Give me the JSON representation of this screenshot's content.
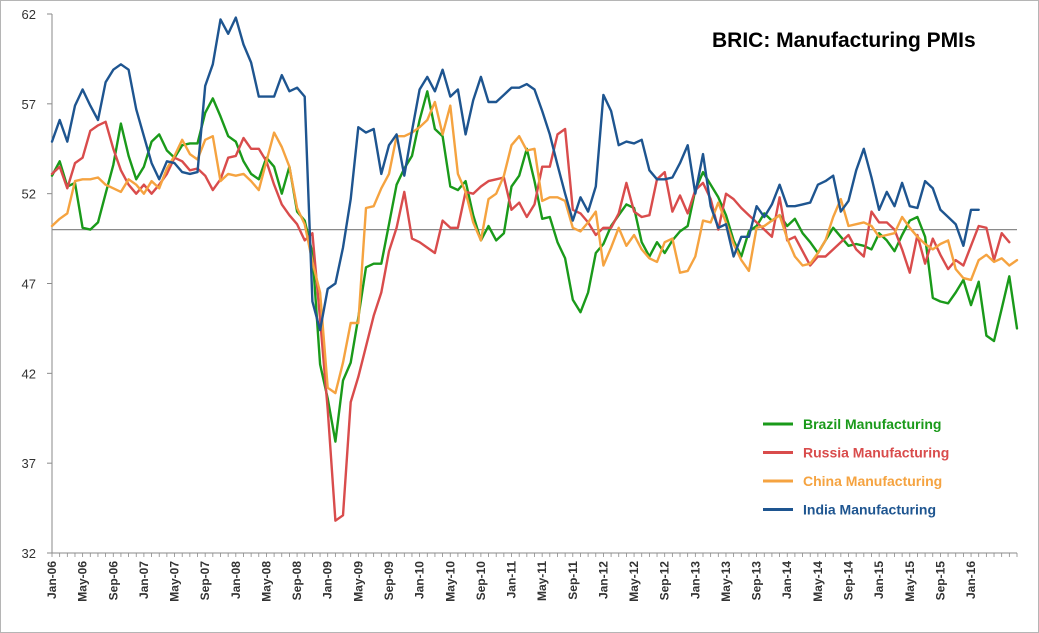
{
  "chart_data": {
    "type": "line",
    "title": "BRIC: Manufacturing PMIs",
    "xlabel": "",
    "ylabel": "",
    "ylim": [
      32,
      62
    ],
    "yticks": [
      32,
      37,
      42,
      47,
      52,
      57,
      62
    ],
    "reference_line": 50,
    "legend_position": "bottom-right",
    "grid": false,
    "x_tick_labels": [
      "Jan-06",
      "May-06",
      "Sep-06",
      "Jan-07",
      "May-07",
      "Sep-07",
      "Jan-08",
      "May-08",
      "Sep-08",
      "Jan-09",
      "May-09",
      "Sep-09",
      "Jan-10",
      "May-10",
      "Sep-10",
      "Jan-11",
      "May-11",
      "Sep-11",
      "Jan-12",
      "May-12",
      "Sep-12",
      "Jan-13",
      "May-13",
      "Sep-13",
      "Jan-14",
      "May-14",
      "Sep-14",
      "Jan-15",
      "May-15",
      "Sep-15",
      "Jan-16"
    ],
    "x_tick_start_index": 0,
    "x_tick_step_months": 4,
    "x_start": "Jan-06",
    "x_end": "Mar-16",
    "series": [
      {
        "name": "Brazil Manufacturing",
        "color": "#1a9a1a",
        "values": [
          53,
          53.8,
          52.4,
          52.6,
          50.1,
          50,
          50.4,
          52,
          53.6,
          55.9,
          54.1,
          52.8,
          53.5,
          54.9,
          55.3,
          54.4,
          54,
          54.7,
          54.8,
          54.8,
          56.5,
          57.3,
          56.3,
          55.2,
          54.9,
          53.8,
          53.1,
          52.8,
          54,
          53.5,
          52,
          53.5,
          51,
          50.5,
          48.7,
          42.5,
          40.6,
          38.2,
          41.6,
          42.6,
          45.1,
          47.9,
          48.1,
          48.1,
          50.3,
          52.5,
          53.4,
          54.1,
          56.1,
          57.7,
          55.6,
          55.2,
          52.4,
          52.2,
          52.7,
          50.8,
          49.4,
          50.2,
          49.4,
          49.8,
          52.4,
          53,
          54.5,
          52.7,
          50.6,
          50.7,
          49.3,
          48.4,
          46.1,
          45.4,
          46.5,
          48.7,
          49.2,
          50.2,
          50.8,
          51.4,
          51.2,
          49.3,
          48.5,
          49.3,
          48.7,
          49.4,
          49.9,
          50.2,
          52.2,
          53.2,
          52.5,
          51.8,
          50.8,
          49.4,
          48.5,
          49.9,
          50.2,
          50.9,
          50.5,
          50.8,
          50.2,
          50.6,
          49.8,
          49.3,
          48.7,
          49.4,
          50.1,
          49.6,
          49.1,
          49.2,
          49.1,
          48.9,
          49.8,
          49.4,
          48.8,
          49.7,
          50.5,
          50.7,
          49.6,
          46.2,
          46,
          45.9,
          46.5,
          47.2,
          45.8,
          47.1,
          44.1,
          43.8,
          45.6,
          47.4,
          44.5
        ]
      },
      {
        "name": "Russia Manufacturing",
        "color": "#d94c4c",
        "values": [
          53.1,
          53.5,
          52.3,
          53.7,
          54,
          55.5,
          55.8,
          56,
          54.5,
          53.3,
          52.5,
          52,
          52.5,
          52,
          52.5,
          53.1,
          54,
          53.8,
          53.3,
          53.4,
          53,
          52.2,
          52.8,
          54,
          54.1,
          55.1,
          54.5,
          54.5,
          53.8,
          52.5,
          51.4,
          50.8,
          50.3,
          49.4,
          49.8,
          45,
          40,
          33.8,
          34.1,
          40.4,
          41.8,
          43.5,
          45.2,
          46.5,
          48.8,
          50.1,
          52.1,
          49.5,
          49.3,
          49,
          48.7,
          50.5,
          50.1,
          50.1,
          52.1,
          52,
          52.4,
          52.7,
          52.8,
          52.9,
          51.1,
          51.5,
          50.7,
          51.4,
          53.5,
          53.5,
          55.3,
          55.6,
          51.1,
          50.9,
          50.4,
          49.7,
          50.1,
          50.1,
          50.9,
          52.6,
          51,
          50.7,
          50.8,
          52.8,
          53.2,
          51,
          51.9,
          50.9,
          52.2,
          52.6,
          51.7,
          50,
          52,
          51.7,
          51.2,
          50.8,
          50.4,
          50,
          49.6,
          51.8,
          49.4,
          49.6,
          48.8,
          48,
          48.5,
          48.5,
          48.9,
          49.3,
          49.7,
          48.9,
          48.5,
          51,
          50.4,
          50.4,
          50,
          48.9,
          47.6,
          49.7,
          48.1,
          49.5,
          48.6,
          47.8,
          48.3,
          48,
          49.1,
          50.2,
          50.1,
          48.3,
          49.8,
          49.3
        ]
      },
      {
        "name": "China Manufacturing",
        "color": "#f5a340",
        "values": [
          50.2,
          50.6,
          50.9,
          52.7,
          52.8,
          52.8,
          52.9,
          52.5,
          52.3,
          52.1,
          52.8,
          52.5,
          52,
          52.7,
          52.3,
          53.4,
          54.1,
          55,
          54.2,
          53.9,
          55,
          55.2,
          52.7,
          53.1,
          53,
          53.1,
          52.7,
          52.2,
          53.8,
          55.4,
          54.6,
          53.5,
          51.2,
          50.3,
          48.2,
          46.5,
          41.2,
          40.9,
          42.6,
          44.8,
          44.8,
          51.2,
          51.3,
          52.3,
          53.1,
          55.2,
          55.2,
          55.4,
          55.7,
          56.1,
          57.1,
          55.3,
          56.9,
          53.1,
          52.1,
          50.4,
          49.4,
          51.7,
          52,
          53,
          54.7,
          55.2,
          54.4,
          54.5,
          51.6,
          51.8,
          51.8,
          51.6,
          50.1,
          49.9,
          50.4,
          51,
          48,
          49,
          50.1,
          49.1,
          49.7,
          48.9,
          48.4,
          48.2,
          49.3,
          49.5,
          47.6,
          47.7,
          48.5,
          50.5,
          50.4,
          51.5,
          50.4,
          49.2,
          48.3,
          47.7,
          50.1,
          50.2,
          50.5,
          50.8,
          49.5,
          48.5,
          48,
          48.1,
          48.7,
          49.4,
          50.7,
          51.7,
          50.2,
          50.3,
          50.4,
          50.2,
          49.6,
          49.7,
          49.8,
          50.7,
          50.1,
          49.6,
          49.2,
          48.9,
          49.2,
          49.4,
          47.8,
          47.3,
          47.2,
          48.3,
          48.6,
          48.2,
          48.4,
          48,
          48.3
        ]
      },
      {
        "name": "India Manufacturing",
        "color": "#1e5590",
        "values": [
          54.9,
          56.1,
          54.9,
          56.9,
          57.8,
          56.9,
          56.1,
          58.2,
          58.9,
          59.2,
          58.9,
          56.7,
          55.2,
          53.7,
          52.8,
          53.8,
          53.7,
          53.2,
          53.1,
          53.2,
          58,
          59.2,
          61.7,
          60.9,
          61.8,
          60.3,
          59.3,
          57.4,
          57.4,
          57.4,
          58.6,
          57.7,
          57.9,
          57.4,
          46,
          44.4,
          46.7,
          47,
          49,
          51.7,
          55.7,
          55.4,
          55.6,
          53.1,
          54.7,
          55.3,
          53,
          55.5,
          57.8,
          58.5,
          57.7,
          58.9,
          57.4,
          57.8,
          55.3,
          57.2,
          58.5,
          57.1,
          57.1,
          57.5,
          57.9,
          57.9,
          58.1,
          57.8,
          56.6,
          55.3,
          53.6,
          52,
          50.5,
          51.8,
          51,
          52.4,
          57.5,
          56.6,
          54.7,
          54.9,
          54.8,
          55,
          53.3,
          52.8,
          52.8,
          52.9,
          53.7,
          54.7,
          52,
          54.2,
          51.3,
          50.1,
          50.3,
          48.5,
          49.6,
          49.6,
          51.3,
          50.7,
          51.4,
          52.5,
          51.3,
          51.3,
          51.4,
          51.5,
          52.5,
          52.7,
          53,
          51,
          51.6,
          53.3,
          54.5,
          52.9,
          51.1,
          52.1,
          51.3,
          52.6,
          51.3,
          51.2,
          52.7,
          52.3,
          51.1,
          50.7,
          50.3,
          49.1,
          51.1,
          51.1
        ]
      }
    ]
  }
}
